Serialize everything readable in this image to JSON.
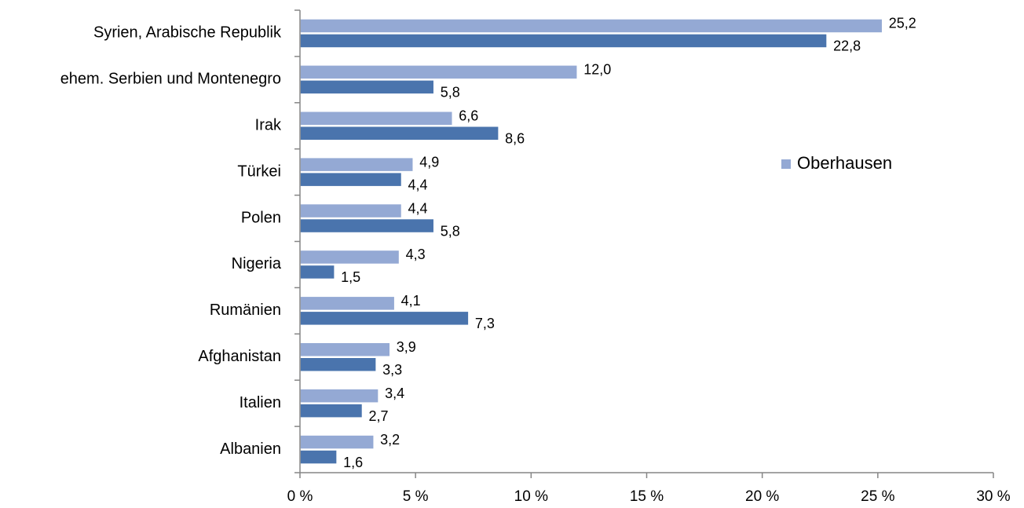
{
  "chart_data": {
    "type": "bar",
    "orientation": "horizontal",
    "categories": [
      "Syrien, Arabische Republik",
      "ehem. Serbien und Montenegro",
      "Irak",
      "Türkei",
      "Polen",
      "Nigeria",
      "Rumänien",
      "Afghanistan",
      "Italien",
      "Albanien"
    ],
    "series": [
      {
        "name": "Oberhausen",
        "color": "#94a9d4",
        "values": [
          25.2,
          12.0,
          6.6,
          4.9,
          4.4,
          4.3,
          4.1,
          3.9,
          3.4,
          3.2
        ],
        "labels": [
          "25,2",
          "12,0",
          "6,6",
          "4,9",
          "4,4",
          "4,3",
          "4,1",
          "3,9",
          "3,4",
          "3,2"
        ]
      },
      {
        "color": "#4a74ad",
        "values": [
          22.8,
          5.8,
          8.6,
          4.4,
          5.8,
          1.5,
          7.3,
          3.3,
          2.7,
          1.6
        ],
        "labels": [
          "22,8",
          "5,8",
          "8,6",
          "4,4",
          "5,8",
          "1,5",
          "7,3",
          "3,3",
          "2,7",
          "1,6"
        ]
      }
    ],
    "xlim": [
      0,
      30
    ],
    "x_ticks": [
      0,
      5,
      10,
      15,
      20,
      25,
      30
    ],
    "x_tick_labels": [
      "0 %",
      "5 %",
      "10 %",
      "15 %",
      "20 %",
      "25 %",
      "30 %"
    ],
    "legend": {
      "items": [
        "Oberhausen"
      ],
      "placement": "right"
    },
    "grid": false
  }
}
